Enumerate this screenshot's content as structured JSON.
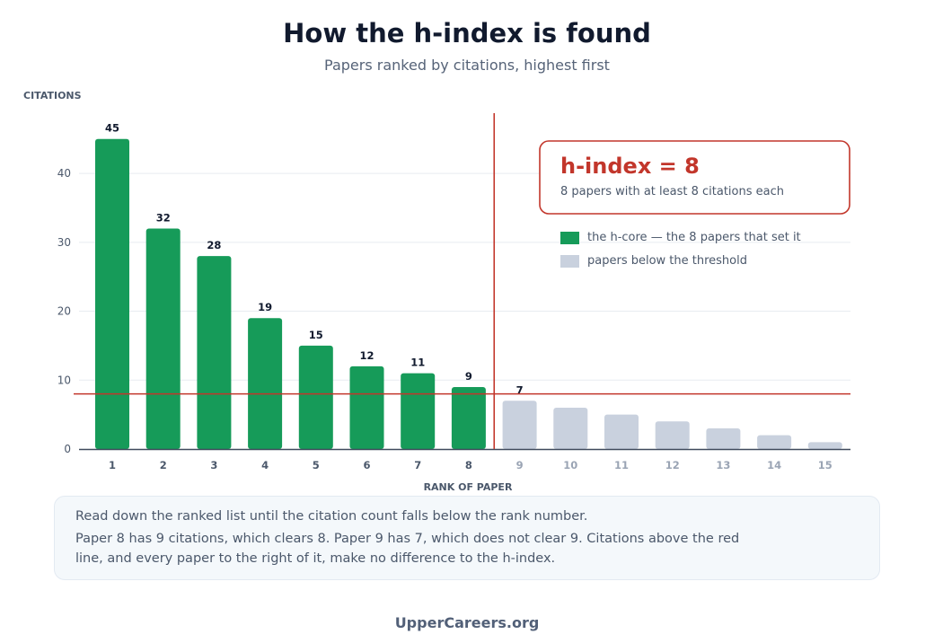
{
  "title": "How the h-index is found",
  "subtitle": "Papers ranked by citations, highest first",
  "callout": {
    "heading": "h-index = 8",
    "text": "8 papers with at least 8 citations each"
  },
  "legend": [
    {
      "label": "the h-core — the 8 papers that set it",
      "color": "#169b59"
    },
    {
      "label": "papers below the threshold",
      "color": "#c9d1de"
    }
  ],
  "note": {
    "line1": "Read down the ranked list until the citation count falls below the rank number.",
    "line2": "Paper 8 has 9 citations, which clears 8. Paper 9 has 7, which does not clear 9. Citations above the red line, and every paper to the right of it, make no difference to the h-index."
  },
  "footer": "UpperCareers.org",
  "chart_data": {
    "type": "bar",
    "ylabel": "CITATIONS",
    "xlabel": "RANK OF PAPER",
    "categories": [
      "1",
      "2",
      "3",
      "4",
      "5",
      "6",
      "7",
      "8",
      "9",
      "10",
      "11",
      "12",
      "13",
      "14",
      "15"
    ],
    "values": [
      45,
      32,
      28,
      19,
      15,
      12,
      11,
      9,
      7,
      6,
      5,
      4,
      3,
      2,
      1
    ],
    "data_labels": [
      "45",
      "32",
      "28",
      "19",
      "15",
      "12",
      "11",
      "9",
      "7",
      "",
      "",
      "",
      "",
      "",
      ""
    ],
    "ylim": [
      0,
      48
    ],
    "yticks": [
      0,
      10,
      20,
      30,
      40
    ],
    "h_index": 8,
    "core_color": "#169b59",
    "below_color": "#c9d1de",
    "threshold_color": "#c2362b",
    "grid": true
  }
}
